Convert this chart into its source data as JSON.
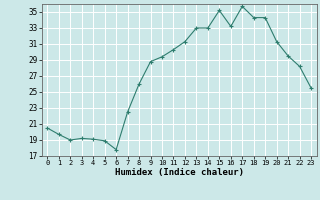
{
  "x": [
    0,
    1,
    2,
    3,
    4,
    5,
    6,
    7,
    8,
    9,
    10,
    11,
    12,
    13,
    14,
    15,
    16,
    17,
    18,
    19,
    20,
    21,
    22,
    23
  ],
  "y": [
    20.5,
    19.7,
    19.0,
    19.2,
    19.1,
    18.9,
    17.8,
    22.5,
    26.0,
    28.8,
    29.4,
    30.3,
    31.3,
    33.0,
    33.0,
    35.2,
    33.2,
    35.7,
    34.3,
    34.3,
    31.3,
    29.5,
    28.2,
    25.5
  ],
  "xlabel": "Humidex (Indice chaleur)",
  "ylim": [
    17,
    36
  ],
  "xlim": [
    -0.5,
    23.5
  ],
  "yticks": [
    17,
    19,
    21,
    23,
    25,
    27,
    29,
    31,
    33,
    35
  ],
  "xticks": [
    0,
    1,
    2,
    3,
    4,
    5,
    6,
    7,
    8,
    9,
    10,
    11,
    12,
    13,
    14,
    15,
    16,
    17,
    18,
    19,
    20,
    21,
    22,
    23
  ],
  "line_color": "#2e7d6e",
  "marker": "+",
  "bg_color": "#cce8e8",
  "grid_color": "#ffffff"
}
